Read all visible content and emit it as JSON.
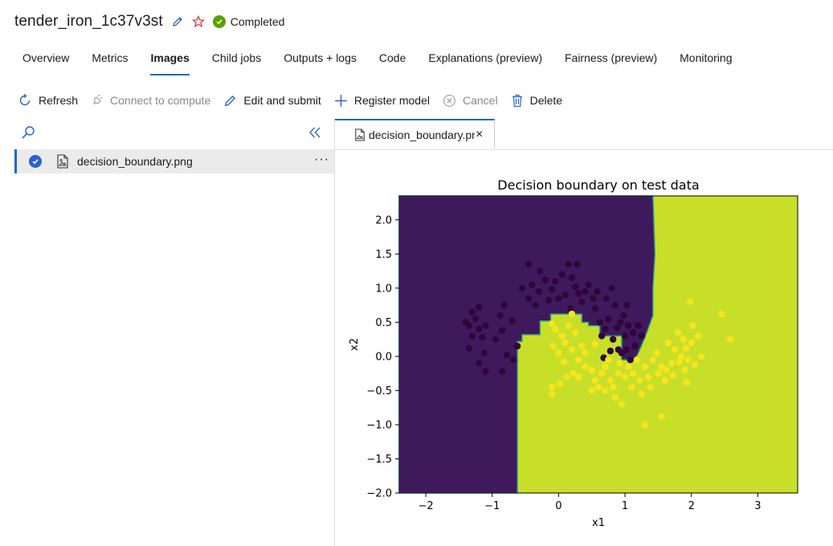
{
  "header": {
    "job_name": "tender_iron_1c37v3st",
    "status": "Completed",
    "status_color": "#57a300"
  },
  "tabs": [
    {
      "label": "Overview",
      "active": false
    },
    {
      "label": "Metrics",
      "active": false
    },
    {
      "label": "Images",
      "active": true
    },
    {
      "label": "Child jobs",
      "active": false
    },
    {
      "label": "Outputs + logs",
      "active": false
    },
    {
      "label": "Code",
      "active": false
    },
    {
      "label": "Explanations (preview)",
      "active": false
    },
    {
      "label": "Fairness (preview)",
      "active": false
    },
    {
      "label": "Monitoring",
      "active": false
    }
  ],
  "toolbar": {
    "refresh": "Refresh",
    "connect": "Connect to compute",
    "edit_submit": "Edit and submit",
    "register_model": "Register model",
    "cancel": "Cancel",
    "delete": "Delete"
  },
  "file_list": {
    "items": [
      {
        "name": "decision_boundary.png",
        "selected": true
      }
    ],
    "more": "···"
  },
  "doc_tab": {
    "name": "decision_boundary.pr",
    "close": "×"
  },
  "colors": {
    "accent": "#0f6cbd",
    "class0": "#3e1a5c",
    "class1": "#c8df2a",
    "point0": "#30063d",
    "point1": "#f5e51d"
  },
  "chart_data": {
    "type": "scatter",
    "title": "Decision boundary on test data",
    "xlabel": "x1",
    "ylabel": "x2",
    "xlim": [
      -2.4,
      3.6
    ],
    "ylim": [
      -2.0,
      2.35
    ],
    "xticks": [
      -2,
      -1,
      0,
      1,
      2,
      3
    ],
    "yticks": [
      -2.0,
      -1.5,
      -1.0,
      -0.5,
      0.0,
      0.5,
      1.0,
      1.5,
      2.0
    ],
    "grid": false,
    "background_regions": [
      {
        "class": 0,
        "polygon": [
          [
            -2.4,
            -2.0
          ],
          [
            -0.62,
            -2.0
          ],
          [
            -0.62,
            0.22
          ],
          [
            -0.55,
            0.22
          ],
          [
            -0.55,
            0.32
          ],
          [
            -0.28,
            0.32
          ],
          [
            -0.28,
            0.52
          ],
          [
            -0.12,
            0.52
          ],
          [
            -0.12,
            0.62
          ],
          [
            0.35,
            0.62
          ],
          [
            0.35,
            0.5
          ],
          [
            0.45,
            0.5
          ],
          [
            0.45,
            0.45
          ],
          [
            0.62,
            0.45
          ],
          [
            0.62,
            0.3
          ],
          [
            0.95,
            0.3
          ],
          [
            0.95,
            -0.05
          ],
          [
            1.15,
            -0.05
          ],
          [
            1.2,
            0.05
          ],
          [
            1.3,
            0.28
          ],
          [
            1.42,
            0.6
          ],
          [
            1.42,
            1.0
          ],
          [
            1.45,
            1.5
          ],
          [
            1.42,
            2.35
          ],
          [
            -2.4,
            2.35
          ]
        ]
      }
    ],
    "series": [
      {
        "name": "0",
        "points": [
          [
            -1.4,
            0.5
          ],
          [
            -1.3,
            0.65
          ],
          [
            -1.2,
            0.72
          ],
          [
            -1.25,
            0.55
          ],
          [
            -1.35,
            0.45
          ],
          [
            -1.2,
            0.4
          ],
          [
            -1.1,
            0.45
          ],
          [
            -1.15,
            0.28
          ],
          [
            -1.3,
            0.3
          ],
          [
            -1.35,
            0.12
          ],
          [
            -1.12,
            0.05
          ],
          [
            -1.2,
            -0.1
          ],
          [
            -1.1,
            -0.22
          ],
          [
            -0.88,
            0.6
          ],
          [
            -0.82,
            0.75
          ],
          [
            -0.7,
            0.52
          ],
          [
            -0.85,
            0.38
          ],
          [
            -0.95,
            0.25
          ],
          [
            -0.62,
            0.15
          ],
          [
            -0.78,
            0.02
          ],
          [
            -0.85,
            -0.22
          ],
          [
            -0.68,
            -0.05
          ],
          [
            -0.55,
            1.0
          ],
          [
            -0.45,
            0.85
          ],
          [
            -0.4,
            1.05
          ],
          [
            -0.3,
            0.95
          ],
          [
            -0.2,
            1.12
          ],
          [
            -0.1,
            0.98
          ],
          [
            0.0,
            0.85
          ],
          [
            0.05,
            1.2
          ],
          [
            0.1,
            0.9
          ],
          [
            0.15,
            1.35
          ],
          [
            0.2,
            1.15
          ],
          [
            0.25,
            1.02
          ],
          [
            0.3,
            0.92
          ],
          [
            -0.45,
            1.35
          ],
          [
            -0.35,
            0.75
          ],
          [
            -0.28,
            1.25
          ],
          [
            -0.15,
            0.82
          ],
          [
            -0.05,
            1.1
          ],
          [
            0.35,
            0.8
          ],
          [
            0.4,
            0.95
          ],
          [
            0.45,
            1.05
          ],
          [
            0.52,
            0.85
          ],
          [
            0.55,
            0.7
          ],
          [
            0.58,
            0.95
          ],
          [
            0.62,
            0.5
          ],
          [
            0.65,
            0.3
          ],
          [
            0.7,
            0.4
          ],
          [
            0.72,
            0.85
          ],
          [
            0.75,
            0.55
          ],
          [
            0.8,
            1.0
          ],
          [
            0.85,
            0.75
          ],
          [
            0.82,
            0.25
          ],
          [
            0.88,
            0.42
          ],
          [
            0.9,
            0.1
          ],
          [
            0.93,
            0.5
          ],
          [
            0.95,
            0.05
          ],
          [
            1.0,
            0.3
          ],
          [
            1.02,
            0.1
          ],
          [
            1.05,
            0.45
          ],
          [
            1.08,
            -0.05
          ],
          [
            1.12,
            0.35
          ],
          [
            1.15,
            0.15
          ],
          [
            1.2,
            0.45
          ],
          [
            1.25,
            0.3
          ],
          [
            0.78,
            0.08
          ],
          [
            0.68,
            -0.02
          ],
          [
            0.98,
            0.6
          ],
          [
            1.03,
            0.75
          ],
          [
            0.18,
            0.7
          ],
          [
            0.28,
            1.35
          ]
        ]
      },
      {
        "name": "1",
        "points": [
          [
            -0.1,
            0.48
          ],
          [
            -0.05,
            0.4
          ],
          [
            0.05,
            0.3
          ],
          [
            0.1,
            0.2
          ],
          [
            0.15,
            0.45
          ],
          [
            -0.08,
            0.15
          ],
          [
            0.0,
            0.05
          ],
          [
            0.08,
            -0.08
          ],
          [
            0.2,
            0.1
          ],
          [
            0.25,
            0.35
          ],
          [
            0.3,
            -0.05
          ],
          [
            0.35,
            0.15
          ],
          [
            0.4,
            -0.15
          ],
          [
            0.22,
            -0.25
          ],
          [
            0.12,
            -0.3
          ],
          [
            0.02,
            -0.4
          ],
          [
            -0.1,
            -0.45
          ],
          [
            -0.1,
            -0.55
          ],
          [
            0.2,
            0.62
          ],
          [
            0.55,
            0.18
          ],
          [
            0.5,
            -0.2
          ],
          [
            0.55,
            -0.35
          ],
          [
            0.6,
            -0.45
          ],
          [
            0.65,
            -0.25
          ],
          [
            0.7,
            -0.5
          ],
          [
            0.7,
            -0.15
          ],
          [
            0.75,
            -0.05
          ],
          [
            0.78,
            -0.35
          ],
          [
            0.82,
            -0.45
          ],
          [
            0.85,
            -0.6
          ],
          [
            0.9,
            -0.25
          ],
          [
            0.92,
            -0.1
          ],
          [
            0.95,
            -0.7
          ],
          [
            1.0,
            -0.3
          ],
          [
            1.05,
            -0.15
          ],
          [
            1.1,
            -0.45
          ],
          [
            1.12,
            -0.25
          ],
          [
            1.18,
            -0.05
          ],
          [
            1.22,
            -0.35
          ],
          [
            1.25,
            -0.55
          ],
          [
            1.3,
            -0.15
          ],
          [
            1.35,
            -0.3
          ],
          [
            1.38,
            -0.45
          ],
          [
            1.42,
            -0.05
          ],
          [
            1.48,
            0.05
          ],
          [
            1.5,
            -0.25
          ],
          [
            1.55,
            -0.15
          ],
          [
            1.6,
            -0.35
          ],
          [
            1.62,
            -0.2
          ],
          [
            1.65,
            0.2
          ],
          [
            1.7,
            -0.1
          ],
          [
            1.72,
            -0.28
          ],
          [
            1.75,
            0.1
          ],
          [
            1.8,
            0.35
          ],
          [
            1.82,
            -0.08
          ],
          [
            1.85,
            0.0
          ],
          [
            1.9,
            -0.2
          ],
          [
            1.92,
            0.12
          ],
          [
            1.95,
            -0.05
          ],
          [
            2.0,
            0.2
          ],
          [
            2.02,
            0.45
          ],
          [
            2.05,
            -0.12
          ],
          [
            2.1,
            0.3
          ],
          [
            2.15,
            0.0
          ],
          [
            1.88,
            0.25
          ],
          [
            1.93,
            -0.38
          ],
          [
            1.98,
            0.8
          ],
          [
            2.45,
            0.62
          ],
          [
            2.58,
            0.25
          ],
          [
            1.3,
            -1.0
          ],
          [
            1.55,
            -0.88
          ],
          [
            0.5,
            -0.5
          ],
          [
            0.3,
            -0.3
          ],
          [
            0.4,
            0.05
          ]
        ]
      }
    ]
  }
}
